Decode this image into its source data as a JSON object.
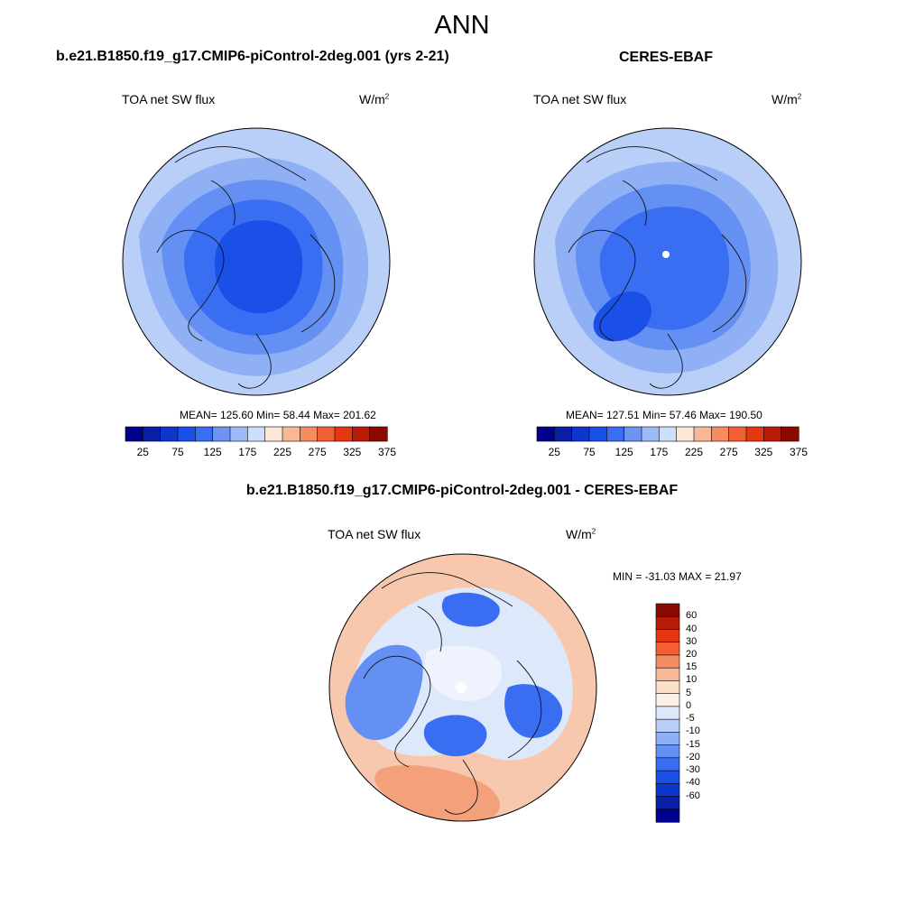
{
  "figure": {
    "title": "ANN"
  },
  "panels": [
    {
      "title": "b.e21.B1850.f19_g17.CMIP6-piControl-2deg.001 (yrs 2-21)",
      "variable": "TOA net SW flux",
      "units_base": "W/m",
      "units_exp": "2",
      "stats": "MEAN= 125.60  Min=  58.44  Max= 201.62"
    },
    {
      "title": "CERES-EBAF",
      "variable": "TOA net SW flux",
      "units_base": "W/m",
      "units_exp": "2",
      "stats": "MEAN= 127.51  Min=  57.46  Max= 190.50"
    },
    {
      "title": "b.e21.B1850.f19_g17.CMIP6-piControl-2deg.001 - CERES-EBAF",
      "variable": "TOA net SW flux",
      "units_base": "W/m",
      "units_exp": "2",
      "stats": "MIN = -31.03 MAX =  21.97"
    }
  ],
  "colorbar_abs": {
    "colors": [
      "#00008c",
      "#0a1fa8",
      "#0c36cc",
      "#1a4fe8",
      "#3a6ef2",
      "#6d94f5",
      "#9dbaf7",
      "#cde0fb",
      "#fce6d8",
      "#f8b896",
      "#f68c62",
      "#f45e34",
      "#e63712",
      "#b81b06",
      "#8a0a02"
    ],
    "tick_labels": [
      "25",
      "75",
      "125",
      "175",
      "225",
      "275",
      "325",
      "375"
    ]
  },
  "colorbar_diff": {
    "colors_top_to_bottom": [
      "#8a0a02",
      "#b81b06",
      "#e63712",
      "#f45e34",
      "#f68c62",
      "#f8b896",
      "#fce0cc",
      "#fdf0e6",
      "#dde8fa",
      "#b9cff7",
      "#8fb0f5",
      "#6390f2",
      "#3a6ef2",
      "#1a4fe8",
      "#0c36cc",
      "#0a1fa8",
      "#00008c"
    ],
    "labels_top_to_bottom": [
      "60",
      "40",
      "30",
      "20",
      "15",
      "10",
      "5",
      "0",
      "-5",
      "-10",
      "-15",
      "-20",
      "-30",
      "-40",
      "-60"
    ]
  }
}
